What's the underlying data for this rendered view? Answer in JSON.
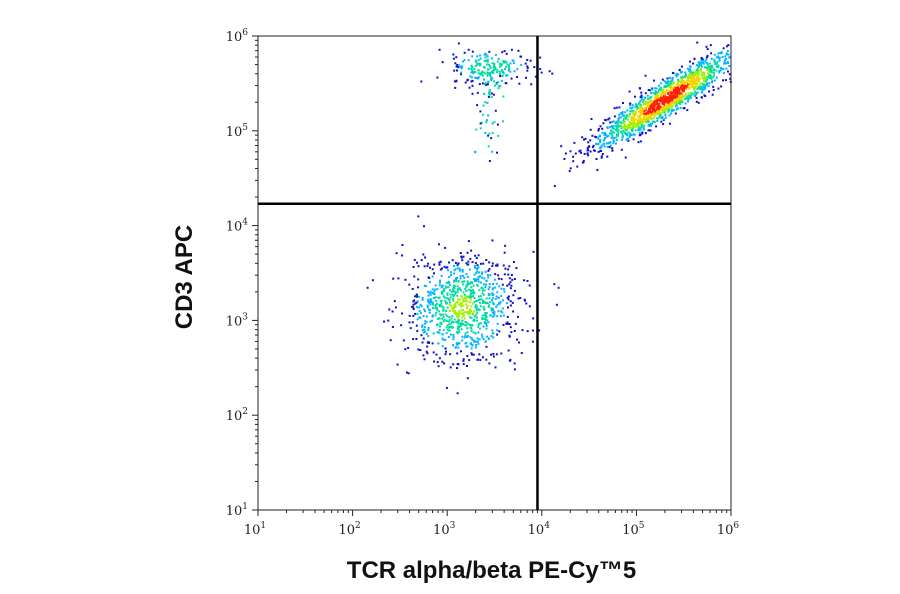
{
  "chart_data": {
    "type": "scatter",
    "title": "",
    "xlabel": "TCR alpha/beta PE-Cy™5",
    "ylabel": "CD3 APC",
    "x_scale": "log",
    "y_scale": "log",
    "xlim": [
      10,
      1000000
    ],
    "ylim": [
      10,
      1000000
    ],
    "x_ticks": [
      {
        "base": "10",
        "exp": "1",
        "value": 10
      },
      {
        "base": "10",
        "exp": "2",
        "value": 100
      },
      {
        "base": "10",
        "exp": "3",
        "value": 1000
      },
      {
        "base": "10",
        "exp": "4",
        "value": 10000
      },
      {
        "base": "10",
        "exp": "5",
        "value": 100000
      },
      {
        "base": "10",
        "exp": "6",
        "value": 1000000
      }
    ],
    "y_ticks": [
      {
        "base": "10",
        "exp": "1",
        "value": 10
      },
      {
        "base": "10",
        "exp": "2",
        "value": 100
      },
      {
        "base": "10",
        "exp": "3",
        "value": 1000
      },
      {
        "base": "10",
        "exp": "4",
        "value": 10000
      },
      {
        "base": "10",
        "exp": "5",
        "value": 100000
      },
      {
        "base": "10",
        "exp": "6",
        "value": 1000000
      }
    ],
    "gates": {
      "x_threshold": 9000,
      "y_threshold": 17000
    },
    "grid": false,
    "legend": "none",
    "density_colors": [
      "#1010c8",
      "#00b4ff",
      "#00dca0",
      "#a0f000",
      "#ffd000",
      "#ff2000"
    ],
    "populations": [
      {
        "center_x": 1400,
        "center_y": 1400,
        "count": 900,
        "peak_density": 0.55
      },
      {
        "center_x": 2800,
        "center_y": 480000,
        "count": 260,
        "peak_density": 0.5
      },
      {
        "center_x": 200000,
        "center_y": 220000,
        "count": 1400,
        "peak_density": 1.0
      }
    ]
  }
}
